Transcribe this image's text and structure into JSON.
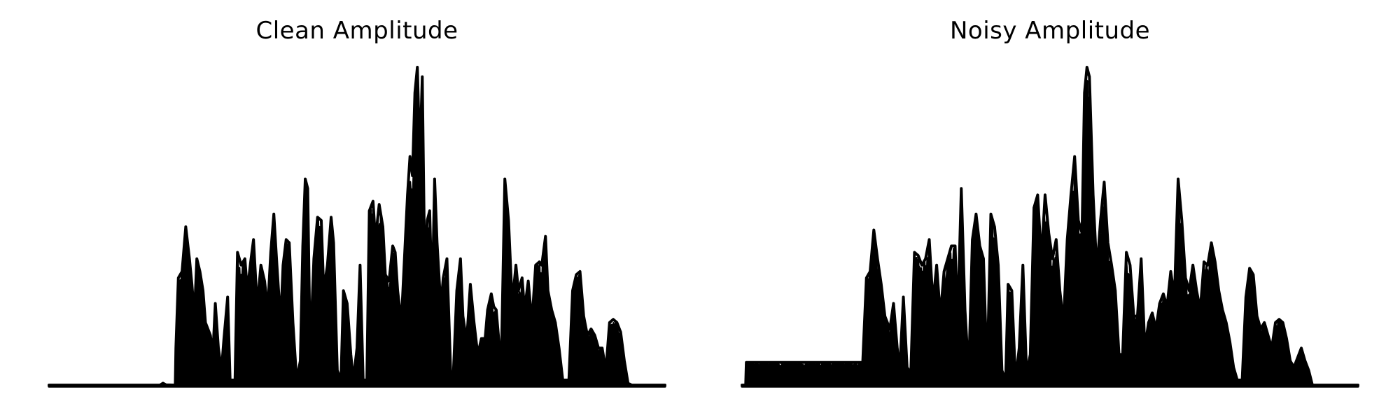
{
  "chart_data": [
    {
      "type": "line",
      "title": "Clean Amplitude",
      "xlabel": "",
      "ylabel": "",
      "axes_visible": false,
      "grid": false,
      "color": "#000000",
      "ylim": [
        0,
        1.0
      ],
      "envelope": {
        "floor": 0.004,
        "points": [
          [
            0.0,
            0.004
          ],
          [
            0.18,
            0.004
          ],
          [
            0.185,
            0.01
          ],
          [
            0.19,
            0.005
          ],
          [
            0.205,
            0.004
          ],
          [
            0.206,
            0.12
          ],
          [
            0.21,
            0.34
          ],
          [
            0.216,
            0.36
          ],
          [
            0.222,
            0.5
          ],
          [
            0.228,
            0.4
          ],
          [
            0.232,
            0.32
          ],
          [
            0.236,
            0.22
          ],
          [
            0.24,
            0.4
          ],
          [
            0.245,
            0.36
          ],
          [
            0.25,
            0.3
          ],
          [
            0.254,
            0.2
          ],
          [
            0.258,
            0.18
          ],
          [
            0.262,
            0.16
          ],
          [
            0.266,
            0.1
          ],
          [
            0.27,
            0.26
          ],
          [
            0.275,
            0.12
          ],
          [
            0.28,
            0.05
          ],
          [
            0.284,
            0.15
          ],
          [
            0.29,
            0.28
          ],
          [
            0.294,
            0.02
          ],
          [
            0.302,
            0.02
          ],
          [
            0.306,
            0.42
          ],
          [
            0.312,
            0.38
          ],
          [
            0.318,
            0.4
          ],
          [
            0.322,
            0.3
          ],
          [
            0.328,
            0.4
          ],
          [
            0.332,
            0.46
          ],
          [
            0.338,
            0.25
          ],
          [
            0.344,
            0.38
          ],
          [
            0.35,
            0.33
          ],
          [
            0.355,
            0.24
          ],
          [
            0.36,
            0.42
          ],
          [
            0.365,
            0.54
          ],
          [
            0.37,
            0.38
          ],
          [
            0.376,
            0.2
          ],
          [
            0.38,
            0.38
          ],
          [
            0.385,
            0.46
          ],
          [
            0.39,
            0.45
          ],
          [
            0.396,
            0.2
          ],
          [
            0.402,
            0.02
          ],
          [
            0.408,
            0.08
          ],
          [
            0.412,
            0.44
          ],
          [
            0.416,
            0.65
          ],
          [
            0.42,
            0.62
          ],
          [
            0.424,
            0.1
          ],
          [
            0.43,
            0.4
          ],
          [
            0.436,
            0.53
          ],
          [
            0.442,
            0.52
          ],
          [
            0.446,
            0.3
          ],
          [
            0.452,
            0.38
          ],
          [
            0.458,
            0.53
          ],
          [
            0.462,
            0.45
          ],
          [
            0.468,
            0.05
          ],
          [
            0.474,
            0.02
          ],
          [
            0.478,
            0.3
          ],
          [
            0.484,
            0.26
          ],
          [
            0.49,
            0.1
          ],
          [
            0.494,
            0.02
          ],
          [
            0.5,
            0.12
          ],
          [
            0.505,
            0.38
          ],
          [
            0.51,
            0.02
          ],
          [
            0.516,
            0.02
          ],
          [
            0.52,
            0.55
          ],
          [
            0.526,
            0.58
          ],
          [
            0.53,
            0.46
          ],
          [
            0.536,
            0.57
          ],
          [
            0.542,
            0.5
          ],
          [
            0.546,
            0.35
          ],
          [
            0.552,
            0.33
          ],
          [
            0.558,
            0.44
          ],
          [
            0.562,
            0.42
          ],
          [
            0.566,
            0.3
          ],
          [
            0.572,
            0.2
          ],
          [
            0.578,
            0.44
          ],
          [
            0.582,
            0.6
          ],
          [
            0.586,
            0.72
          ],
          [
            0.59,
            0.66
          ],
          [
            0.594,
            0.92
          ],
          [
            0.598,
            1.0
          ],
          [
            0.602,
            0.72
          ],
          [
            0.606,
            0.97
          ],
          [
            0.61,
            0.36
          ],
          [
            0.614,
            0.52
          ],
          [
            0.618,
            0.55
          ],
          [
            0.622,
            0.26
          ],
          [
            0.626,
            0.65
          ],
          [
            0.63,
            0.45
          ],
          [
            0.636,
            0.25
          ],
          [
            0.64,
            0.34
          ],
          [
            0.646,
            0.4
          ],
          [
            0.652,
            0.05
          ],
          [
            0.656,
            0.02
          ],
          [
            0.662,
            0.3
          ],
          [
            0.668,
            0.4
          ],
          [
            0.672,
            0.22
          ],
          [
            0.678,
            0.14
          ],
          [
            0.684,
            0.32
          ],
          [
            0.69,
            0.2
          ],
          [
            0.696,
            0.1
          ],
          [
            0.702,
            0.15
          ],
          [
            0.708,
            0.15
          ],
          [
            0.712,
            0.24
          ],
          [
            0.718,
            0.29
          ],
          [
            0.722,
            0.25
          ],
          [
            0.726,
            0.24
          ],
          [
            0.73,
            0.15
          ],
          [
            0.734,
            0.05
          ],
          [
            0.74,
            0.65
          ],
          [
            0.746,
            0.52
          ],
          [
            0.752,
            0.26
          ],
          [
            0.758,
            0.38
          ],
          [
            0.762,
            0.3
          ],
          [
            0.768,
            0.34
          ],
          [
            0.772,
            0.24
          ],
          [
            0.778,
            0.33
          ],
          [
            0.784,
            0.2
          ],
          [
            0.79,
            0.38
          ],
          [
            0.796,
            0.39
          ],
          [
            0.8,
            0.38
          ],
          [
            0.806,
            0.47
          ],
          [
            0.81,
            0.3
          ],
          [
            0.816,
            0.24
          ],
          [
            0.822,
            0.2
          ],
          [
            0.828,
            0.12
          ],
          [
            0.834,
            0.02
          ],
          [
            0.844,
            0.02
          ],
          [
            0.85,
            0.3
          ],
          [
            0.856,
            0.35
          ],
          [
            0.862,
            0.36
          ],
          [
            0.868,
            0.22
          ],
          [
            0.874,
            0.16
          ],
          [
            0.88,
            0.18
          ],
          [
            0.886,
            0.16
          ],
          [
            0.892,
            0.12
          ],
          [
            0.898,
            0.12
          ],
          [
            0.904,
            0.05
          ],
          [
            0.91,
            0.2
          ],
          [
            0.916,
            0.21
          ],
          [
            0.922,
            0.2
          ],
          [
            0.928,
            0.17
          ],
          [
            0.934,
            0.08
          ],
          [
            0.94,
            0.01
          ],
          [
            0.946,
            0.004
          ],
          [
            1.0,
            0.004
          ]
        ]
      }
    },
    {
      "type": "line",
      "title": "Noisy Amplitude",
      "xlabel": "",
      "ylabel": "",
      "axes_visible": false,
      "grid": false,
      "color": "#000000",
      "ylim": [
        0,
        1.0
      ],
      "envelope": {
        "floor": 0.004,
        "points": [
          [
            0.0,
            0.004
          ],
          [
            0.006,
            0.004
          ],
          [
            0.007,
            0.075
          ],
          [
            0.19,
            0.075
          ],
          [
            0.196,
            0.075
          ],
          [
            0.197,
            0.12
          ],
          [
            0.202,
            0.34
          ],
          [
            0.208,
            0.36
          ],
          [
            0.214,
            0.49
          ],
          [
            0.22,
            0.4
          ],
          [
            0.226,
            0.32
          ],
          [
            0.232,
            0.22
          ],
          [
            0.236,
            0.2
          ],
          [
            0.24,
            0.18
          ],
          [
            0.246,
            0.26
          ],
          [
            0.252,
            0.12
          ],
          [
            0.256,
            0.05
          ],
          [
            0.262,
            0.28
          ],
          [
            0.268,
            0.06
          ],
          [
            0.274,
            0.04
          ],
          [
            0.28,
            0.42
          ],
          [
            0.286,
            0.41
          ],
          [
            0.292,
            0.38
          ],
          [
            0.298,
            0.4
          ],
          [
            0.304,
            0.46
          ],
          [
            0.31,
            0.26
          ],
          [
            0.316,
            0.38
          ],
          [
            0.322,
            0.22
          ],
          [
            0.328,
            0.36
          ],
          [
            0.334,
            0.4
          ],
          [
            0.34,
            0.44
          ],
          [
            0.346,
            0.44
          ],
          [
            0.35,
            0.2
          ],
          [
            0.356,
            0.62
          ],
          [
            0.362,
            0.24
          ],
          [
            0.368,
            0.04
          ],
          [
            0.374,
            0.46
          ],
          [
            0.38,
            0.54
          ],
          [
            0.386,
            0.44
          ],
          [
            0.392,
            0.4
          ],
          [
            0.398,
            0.04
          ],
          [
            0.404,
            0.54
          ],
          [
            0.41,
            0.5
          ],
          [
            0.416,
            0.38
          ],
          [
            0.422,
            0.05
          ],
          [
            0.428,
            0.02
          ],
          [
            0.432,
            0.32
          ],
          [
            0.438,
            0.3
          ],
          [
            0.444,
            0.02
          ],
          [
            0.45,
            0.12
          ],
          [
            0.456,
            0.38
          ],
          [
            0.462,
            0.04
          ],
          [
            0.468,
            0.1
          ],
          [
            0.474,
            0.56
          ],
          [
            0.48,
            0.6
          ],
          [
            0.486,
            0.4
          ],
          [
            0.492,
            0.6
          ],
          [
            0.498,
            0.48
          ],
          [
            0.504,
            0.4
          ],
          [
            0.51,
            0.46
          ],
          [
            0.516,
            0.3
          ],
          [
            0.522,
            0.2
          ],
          [
            0.528,
            0.46
          ],
          [
            0.534,
            0.6
          ],
          [
            0.54,
            0.72
          ],
          [
            0.546,
            0.52
          ],
          [
            0.552,
            0.48
          ],
          [
            0.556,
            0.92
          ],
          [
            0.56,
            1.0
          ],
          [
            0.564,
            0.97
          ],
          [
            0.57,
            0.6
          ],
          [
            0.576,
            0.36
          ],
          [
            0.582,
            0.52
          ],
          [
            0.588,
            0.64
          ],
          [
            0.594,
            0.45
          ],
          [
            0.6,
            0.38
          ],
          [
            0.606,
            0.3
          ],
          [
            0.612,
            0.1
          ],
          [
            0.618,
            0.1
          ],
          [
            0.624,
            0.42
          ],
          [
            0.63,
            0.38
          ],
          [
            0.636,
            0.22
          ],
          [
            0.642,
            0.22
          ],
          [
            0.648,
            0.4
          ],
          [
            0.654,
            0.12
          ],
          [
            0.66,
            0.2
          ],
          [
            0.666,
            0.23
          ],
          [
            0.672,
            0.18
          ],
          [
            0.678,
            0.26
          ],
          [
            0.684,
            0.29
          ],
          [
            0.69,
            0.25
          ],
          [
            0.696,
            0.36
          ],
          [
            0.702,
            0.28
          ],
          [
            0.708,
            0.65
          ],
          [
            0.714,
            0.52
          ],
          [
            0.72,
            0.34
          ],
          [
            0.726,
            0.3
          ],
          [
            0.732,
            0.38
          ],
          [
            0.738,
            0.3
          ],
          [
            0.744,
            0.24
          ],
          [
            0.75,
            0.39
          ],
          [
            0.756,
            0.38
          ],
          [
            0.762,
            0.45
          ],
          [
            0.768,
            0.39
          ],
          [
            0.774,
            0.3
          ],
          [
            0.78,
            0.24
          ],
          [
            0.786,
            0.2
          ],
          [
            0.792,
            0.14
          ],
          [
            0.798,
            0.06
          ],
          [
            0.804,
            0.02
          ],
          [
            0.812,
            0.02
          ],
          [
            0.818,
            0.28
          ],
          [
            0.824,
            0.37
          ],
          [
            0.83,
            0.35
          ],
          [
            0.836,
            0.22
          ],
          [
            0.842,
            0.18
          ],
          [
            0.848,
            0.2
          ],
          [
            0.854,
            0.16
          ],
          [
            0.86,
            0.12
          ],
          [
            0.866,
            0.2
          ],
          [
            0.872,
            0.21
          ],
          [
            0.878,
            0.2
          ],
          [
            0.884,
            0.15
          ],
          [
            0.89,
            0.08
          ],
          [
            0.896,
            0.06
          ],
          [
            0.902,
            0.09
          ],
          [
            0.908,
            0.12
          ],
          [
            0.914,
            0.08
          ],
          [
            0.92,
            0.05
          ],
          [
            0.926,
            0.004
          ],
          [
            1.0,
            0.004
          ]
        ]
      }
    }
  ]
}
